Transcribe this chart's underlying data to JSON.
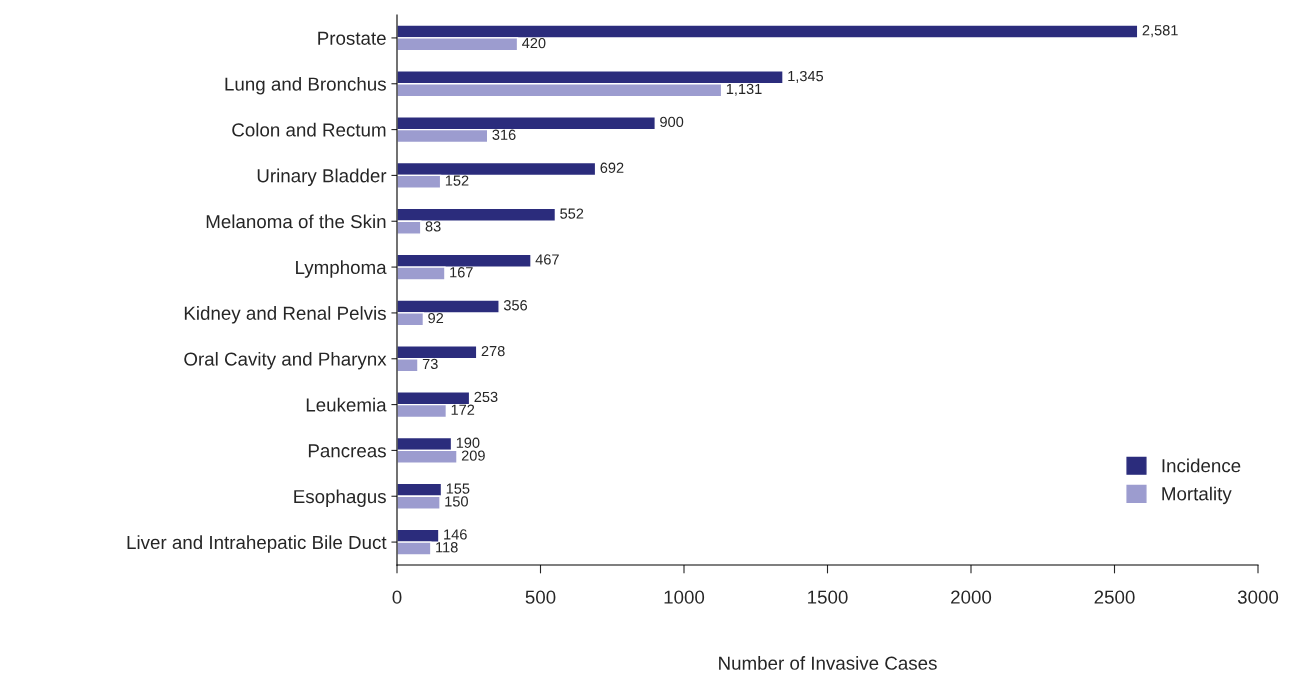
{
  "chart_data": {
    "type": "bar",
    "orientation": "horizontal",
    "xlabel": "Number of Invasive Cases",
    "categories": [
      "Prostate",
      "Lung and Bronchus",
      "Colon and Rectum",
      "Urinary Bladder",
      "Melanoma of the Skin",
      "Lymphoma",
      "Kidney and Renal Pelvis",
      "Oral Cavity and Pharynx",
      "Leukemia",
      "Pancreas",
      "Esophagus",
      "Liver and Intrahepatic Bile Duct"
    ],
    "series": [
      {
        "name": "Incidence",
        "color": "#2b2c7c",
        "values": [
          2581,
          1345,
          900,
          692,
          552,
          467,
          356,
          278,
          253,
          190,
          155,
          146
        ],
        "value_labels": [
          "2,581",
          "1,345",
          "900",
          "692",
          "552",
          "467",
          "356",
          "278",
          "253",
          "190",
          "155",
          "146"
        ]
      },
      {
        "name": "Mortality",
        "color": "#9c9ccf",
        "values": [
          420,
          1131,
          316,
          152,
          83,
          167,
          92,
          73,
          172,
          209,
          150,
          118
        ],
        "value_labels": [
          "420",
          "1,131",
          "316",
          "152",
          "83",
          "167",
          "92",
          "73",
          "172",
          "209",
          "150",
          "118"
        ]
      }
    ],
    "xlim": [
      0,
      3000
    ],
    "xticks": [
      0,
      500,
      1000,
      1500,
      2000,
      2500,
      3000
    ],
    "legend": "bottom right",
    "grid": false
  }
}
